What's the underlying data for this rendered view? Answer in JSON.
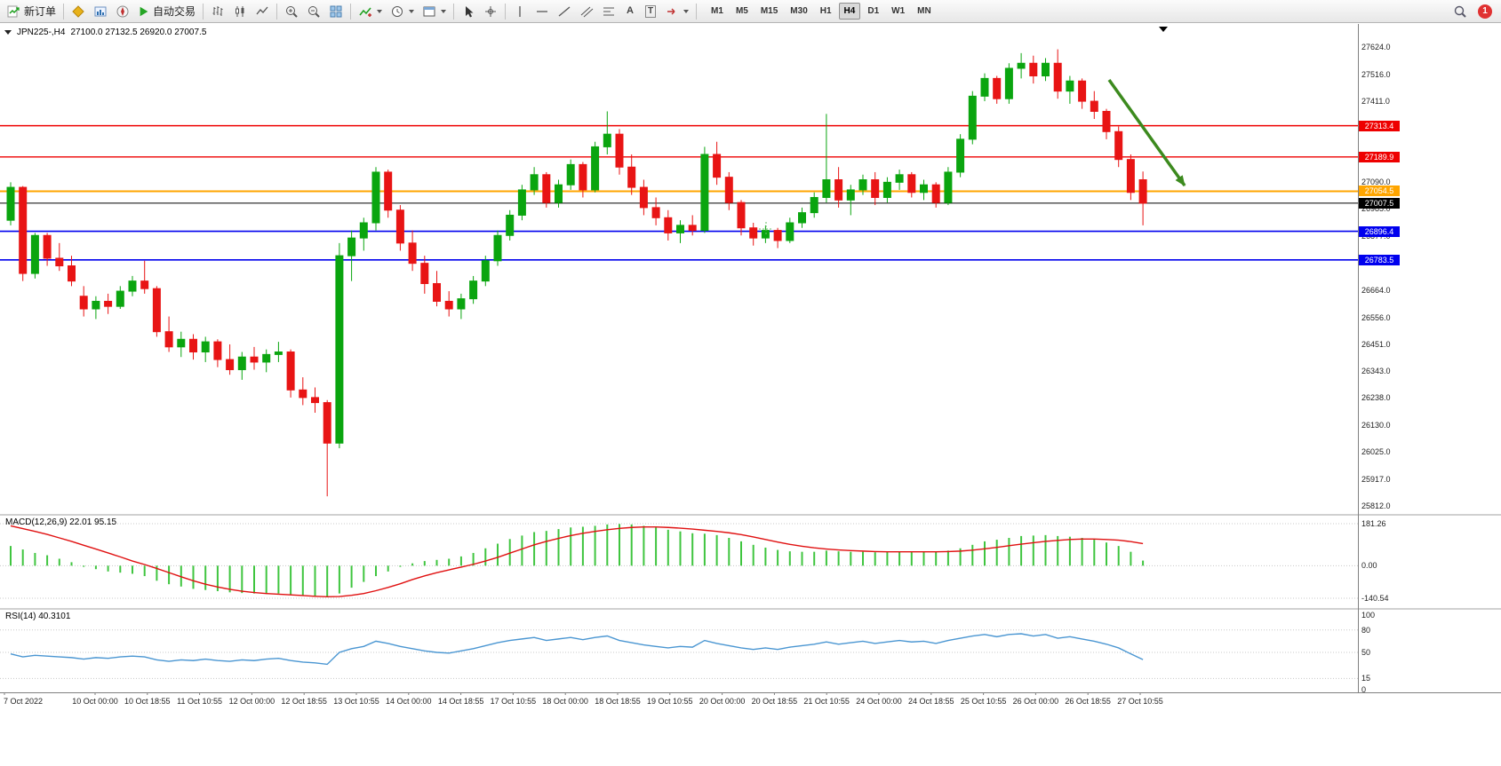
{
  "toolbar": {
    "new_order_label": "新订单",
    "autotrading_label": "自动交易",
    "timeframes": [
      "M1",
      "M5",
      "M15",
      "M30",
      "H1",
      "H4",
      "D1",
      "W1",
      "MN"
    ],
    "active_timeframe": "H4",
    "notification_count": "1",
    "text_tool_glyph": "A",
    "label_tool_glyph": "T"
  },
  "chart": {
    "title_symbol": "JPN225-,H4",
    "title_ohlc": "27100.0 27132.5 26920.0 27007.5",
    "price_ticks": [
      "27624.0",
      "27516.0",
      "27411.0",
      "27090.0",
      "26985.0",
      "26877.0",
      "26664.0",
      "26556.0",
      "26451.0",
      "26343.0",
      "26238.0",
      "26130.0",
      "26025.0",
      "25917.0",
      "25812.0"
    ]
  },
  "chart_data": {
    "type": "candlestick",
    "symbol": "JPN225-",
    "timeframe": "H4",
    "current_bar": {
      "open": 27100.0,
      "high": 27132.5,
      "low": 26920.0,
      "close": 27007.5
    },
    "y_range": [
      25812.0,
      27624.0
    ],
    "time_labels": [
      "7 Oct 2022",
      "10 Oct 00:00",
      "10 Oct 18:55",
      "11 Oct 10:55",
      "12 Oct 00:00",
      "12 Oct 18:55",
      "13 Oct 10:55",
      "14 Oct 00:00",
      "14 Oct 18:55",
      "17 Oct 10:55",
      "18 Oct 00:00",
      "18 Oct 18:55",
      "19 Oct 10:55",
      "20 Oct 00:00",
      "20 Oct 18:55",
      "21 Oct 10:55",
      "24 Oct 00:00",
      "24 Oct 18:55",
      "25 Oct 10:55",
      "26 Oct 00:00",
      "26 Oct 18:55",
      "27 Oct 10:55"
    ],
    "hlines": [
      {
        "price": 27313.4,
        "label": "27313.4",
        "color": "#ee0000",
        "width": 1.4
      },
      {
        "price": 27189.9,
        "label": "27189.9",
        "color": "#ee0000",
        "width": 1.4
      },
      {
        "price": 27054.5,
        "label": "27054.5",
        "color": "#ffa500",
        "width": 2
      },
      {
        "price": 27007.5,
        "label": "27007.5",
        "color": "#000000",
        "width": 1
      },
      {
        "price": 26896.4,
        "label": "26896.4",
        "color": "#0000ee",
        "width": 1.6
      },
      {
        "price": 26783.5,
        "label": "26783.5",
        "color": "#0000ee",
        "width": 1.6
      }
    ],
    "candles": [
      [
        26940,
        27090,
        26920,
        27070
      ],
      [
        27070,
        27075,
        26700,
        26730
      ],
      [
        26730,
        26890,
        26710,
        26880
      ],
      [
        26880,
        26890,
        26760,
        26790
      ],
      [
        26790,
        26850,
        26740,
        26760
      ],
      [
        26760,
        26800,
        26680,
        26700
      ],
      [
        26640,
        26680,
        26560,
        26590
      ],
      [
        26590,
        26640,
        26550,
        26620
      ],
      [
        26620,
        26650,
        26570,
        26600
      ],
      [
        26600,
        26680,
        26590,
        26660
      ],
      [
        26660,
        26720,
        26640,
        26700
      ],
      [
        26700,
        26780,
        26650,
        26670
      ],
      [
        26670,
        26680,
        26480,
        26500
      ],
      [
        26500,
        26560,
        26420,
        26440
      ],
      [
        26440,
        26500,
        26400,
        26470
      ],
      [
        26470,
        26490,
        26390,
        26420
      ],
      [
        26420,
        26480,
        26380,
        26460
      ],
      [
        26460,
        26470,
        26360,
        26390
      ],
      [
        26390,
        26450,
        26330,
        26350
      ],
      [
        26350,
        26420,
        26310,
        26400
      ],
      [
        26400,
        26440,
        26350,
        26380
      ],
      [
        26380,
        26430,
        26340,
        26410
      ],
      [
        26410,
        26460,
        26380,
        26420
      ],
      [
        26420,
        26430,
        26240,
        26270
      ],
      [
        26270,
        26320,
        26210,
        26240
      ],
      [
        26240,
        26280,
        26180,
        26220
      ],
      [
        26220,
        26230,
        25850,
        26060
      ],
      [
        26060,
        26850,
        26040,
        26800
      ],
      [
        26800,
        26900,
        26700,
        26870
      ],
      [
        26870,
        26950,
        26820,
        26930
      ],
      [
        26930,
        27150,
        26900,
        27130
      ],
      [
        27130,
        27140,
        26950,
        26980
      ],
      [
        26980,
        27000,
        26820,
        26850
      ],
      [
        26850,
        26900,
        26740,
        26770
      ],
      [
        26770,
        26800,
        26650,
        26690
      ],
      [
        26690,
        26740,
        26600,
        26620
      ],
      [
        26620,
        26660,
        26560,
        26590
      ],
      [
        26590,
        26650,
        26550,
        26630
      ],
      [
        26630,
        26720,
        26610,
        26700
      ],
      [
        26700,
        26800,
        26680,
        26780
      ],
      [
        26780,
        26900,
        26760,
        26880
      ],
      [
        26880,
        26980,
        26860,
        26960
      ],
      [
        26960,
        27080,
        26940,
        27060
      ],
      [
        27060,
        27150,
        27040,
        27120
      ],
      [
        27120,
        27130,
        26990,
        27010
      ],
      [
        27010,
        27100,
        26990,
        27080
      ],
      [
        27080,
        27180,
        27060,
        27160
      ],
      [
        27160,
        27170,
        27030,
        27060
      ],
      [
        27060,
        27250,
        27050,
        27230
      ],
      [
        27230,
        27370,
        27200,
        27280
      ],
      [
        27280,
        27300,
        27120,
        27150
      ],
      [
        27150,
        27200,
        27040,
        27070
      ],
      [
        27070,
        27100,
        26960,
        26990
      ],
      [
        26990,
        27030,
        26920,
        26950
      ],
      [
        26950,
        26980,
        26860,
        26890
      ],
      [
        26890,
        26940,
        26850,
        26920
      ],
      [
        26920,
        26960,
        26880,
        26900
      ],
      [
        26900,
        27230,
        26890,
        27200
      ],
      [
        27200,
        27250,
        27080,
        27110
      ],
      [
        27110,
        27130,
        26980,
        27010
      ],
      [
        27010,
        27020,
        26880,
        26910
      ],
      [
        26910,
        26930,
        26840,
        26870
      ],
      [
        26870,
        26920,
        26850,
        26900
      ],
      [
        26900,
        26910,
        26830,
        26860
      ],
      [
        26860,
        26950,
        26850,
        26930
      ],
      [
        26930,
        26990,
        26910,
        26970
      ],
      [
        26970,
        27050,
        26950,
        27030
      ],
      [
        27030,
        27360,
        27010,
        27100
      ],
      [
        27100,
        27150,
        26990,
        27020
      ],
      [
        27020,
        27080,
        26960,
        27060
      ],
      [
        27060,
        27120,
        27040,
        27100
      ],
      [
        27100,
        27130,
        27000,
        27030
      ],
      [
        27030,
        27110,
        27010,
        27090
      ],
      [
        27090,
        27140,
        27060,
        27120
      ],
      [
        27120,
        27130,
        27030,
        27050
      ],
      [
        27050,
        27100,
        27020,
        27080
      ],
      [
        27080,
        27090,
        26990,
        27010
      ],
      [
        27010,
        27150,
        27000,
        27130
      ],
      [
        27130,
        27280,
        27110,
        27260
      ],
      [
        27260,
        27450,
        27240,
        27430
      ],
      [
        27430,
        27520,
        27410,
        27500
      ],
      [
        27500,
        27510,
        27400,
        27420
      ],
      [
        27420,
        27560,
        27400,
        27540
      ],
      [
        27540,
        27600,
        27500,
        27560
      ],
      [
        27560,
        27590,
        27480,
        27510
      ],
      [
        27510,
        27580,
        27490,
        27560
      ],
      [
        27560,
        27615,
        27420,
        27450
      ],
      [
        27450,
        27510,
        27400,
        27490
      ],
      [
        27490,
        27500,
        27380,
        27410
      ],
      [
        27410,
        27450,
        27340,
        27370
      ],
      [
        27370,
        27380,
        27260,
        27290
      ],
      [
        27290,
        27310,
        27150,
        27180
      ],
      [
        27180,
        27200,
        27020,
        27050
      ],
      [
        27100,
        27132.5,
        26920,
        27007.5
      ]
    ],
    "indicators": {
      "macd": {
        "label": "MACD(12,26,9) 22.01 95.15",
        "values_text": [
          "22.01",
          "95.15"
        ],
        "axis_labels": [
          "181.26",
          "0.00",
          "-140.54"
        ],
        "y_range": [
          -140.54,
          181.26
        ],
        "histogram": [
          85,
          70,
          55,
          45,
          30,
          15,
          -5,
          -15,
          -25,
          -30,
          -35,
          -45,
          -65,
          -80,
          -90,
          -100,
          -105,
          -110,
          -115,
          -118,
          -120,
          -122,
          -120,
          -125,
          -130,
          -133,
          -135,
          -120,
          -95,
          -70,
          -45,
          -25,
          -5,
          10,
          20,
          25,
          30,
          40,
          55,
          75,
          95,
          115,
          130,
          145,
          150,
          158,
          165,
          168,
          172,
          178,
          180,
          178,
          172,
          165,
          155,
          148,
          140,
          138,
          132,
          120,
          105,
          90,
          78,
          68,
          62,
          60,
          60,
          65,
          62,
          60,
          60,
          58,
          58,
          60,
          60,
          62,
          60,
          65,
          75,
          90,
          105,
          112,
          120,
          128,
          130,
          132,
          128,
          125,
          120,
          112,
          100,
          85,
          60,
          22.01
        ],
        "signal": [
          172,
          160,
          148,
          135,
          120,
          105,
          88,
          72,
          55,
          38,
          20,
          5,
          -12,
          -30,
          -48,
          -65,
          -80,
          -92,
          -102,
          -110,
          -116,
          -120,
          -123,
          -126,
          -129,
          -132,
          -134,
          -133,
          -128,
          -120,
          -108,
          -94,
          -78,
          -60,
          -44,
          -30,
          -18,
          -6,
          6,
          20,
          36,
          54,
          72,
          90,
          105,
          118,
          130,
          140,
          148,
          155,
          161,
          165,
          167,
          167,
          165,
          162,
          158,
          153,
          148,
          142,
          134,
          124,
          113,
          102,
          92,
          84,
          77,
          72,
          68,
          65,
          63,
          61,
          60,
          60,
          60,
          60,
          60,
          61,
          63,
          67,
          73,
          79,
          86,
          93,
          99,
          105,
          109,
          113,
          115,
          115,
          113,
          110,
          104,
          95.15
        ]
      },
      "rsi": {
        "label": "RSI(14) 40.3101",
        "value_text": "40.3101",
        "axis_labels": [
          "100",
          "80",
          "50",
          "15",
          "0"
        ],
        "levels": [
          80,
          50,
          15
        ],
        "y_range": [
          0,
          100
        ],
        "values": [
          48,
          44,
          46,
          45,
          44,
          43,
          41,
          43,
          42,
          44,
          45,
          44,
          40,
          38,
          40,
          39,
          41,
          39,
          38,
          40,
          39,
          41,
          42,
          39,
          37,
          36,
          34,
          50,
          55,
          58,
          65,
          62,
          58,
          55,
          52,
          50,
          49,
          52,
          55,
          59,
          63,
          66,
          68,
          70,
          66,
          68,
          70,
          67,
          70,
          72,
          66,
          63,
          60,
          58,
          56,
          58,
          57,
          66,
          62,
          59,
          56,
          54,
          56,
          54,
          57,
          59,
          61,
          64,
          61,
          63,
          65,
          62,
          64,
          66,
          64,
          65,
          62,
          66,
          69,
          72,
          74,
          71,
          74,
          75,
          72,
          74,
          69,
          71,
          68,
          65,
          61,
          56,
          48,
          40.31
        ]
      }
    },
    "colors": {
      "up": "#0aa50f",
      "down": "#e81414",
      "macd_hist": "#3fc53f",
      "macd_signal": "#e01010",
      "rsi_line": "#4a96d2",
      "arrow": "#3c8a1e",
      "cross_marker": "#6abf69"
    }
  }
}
